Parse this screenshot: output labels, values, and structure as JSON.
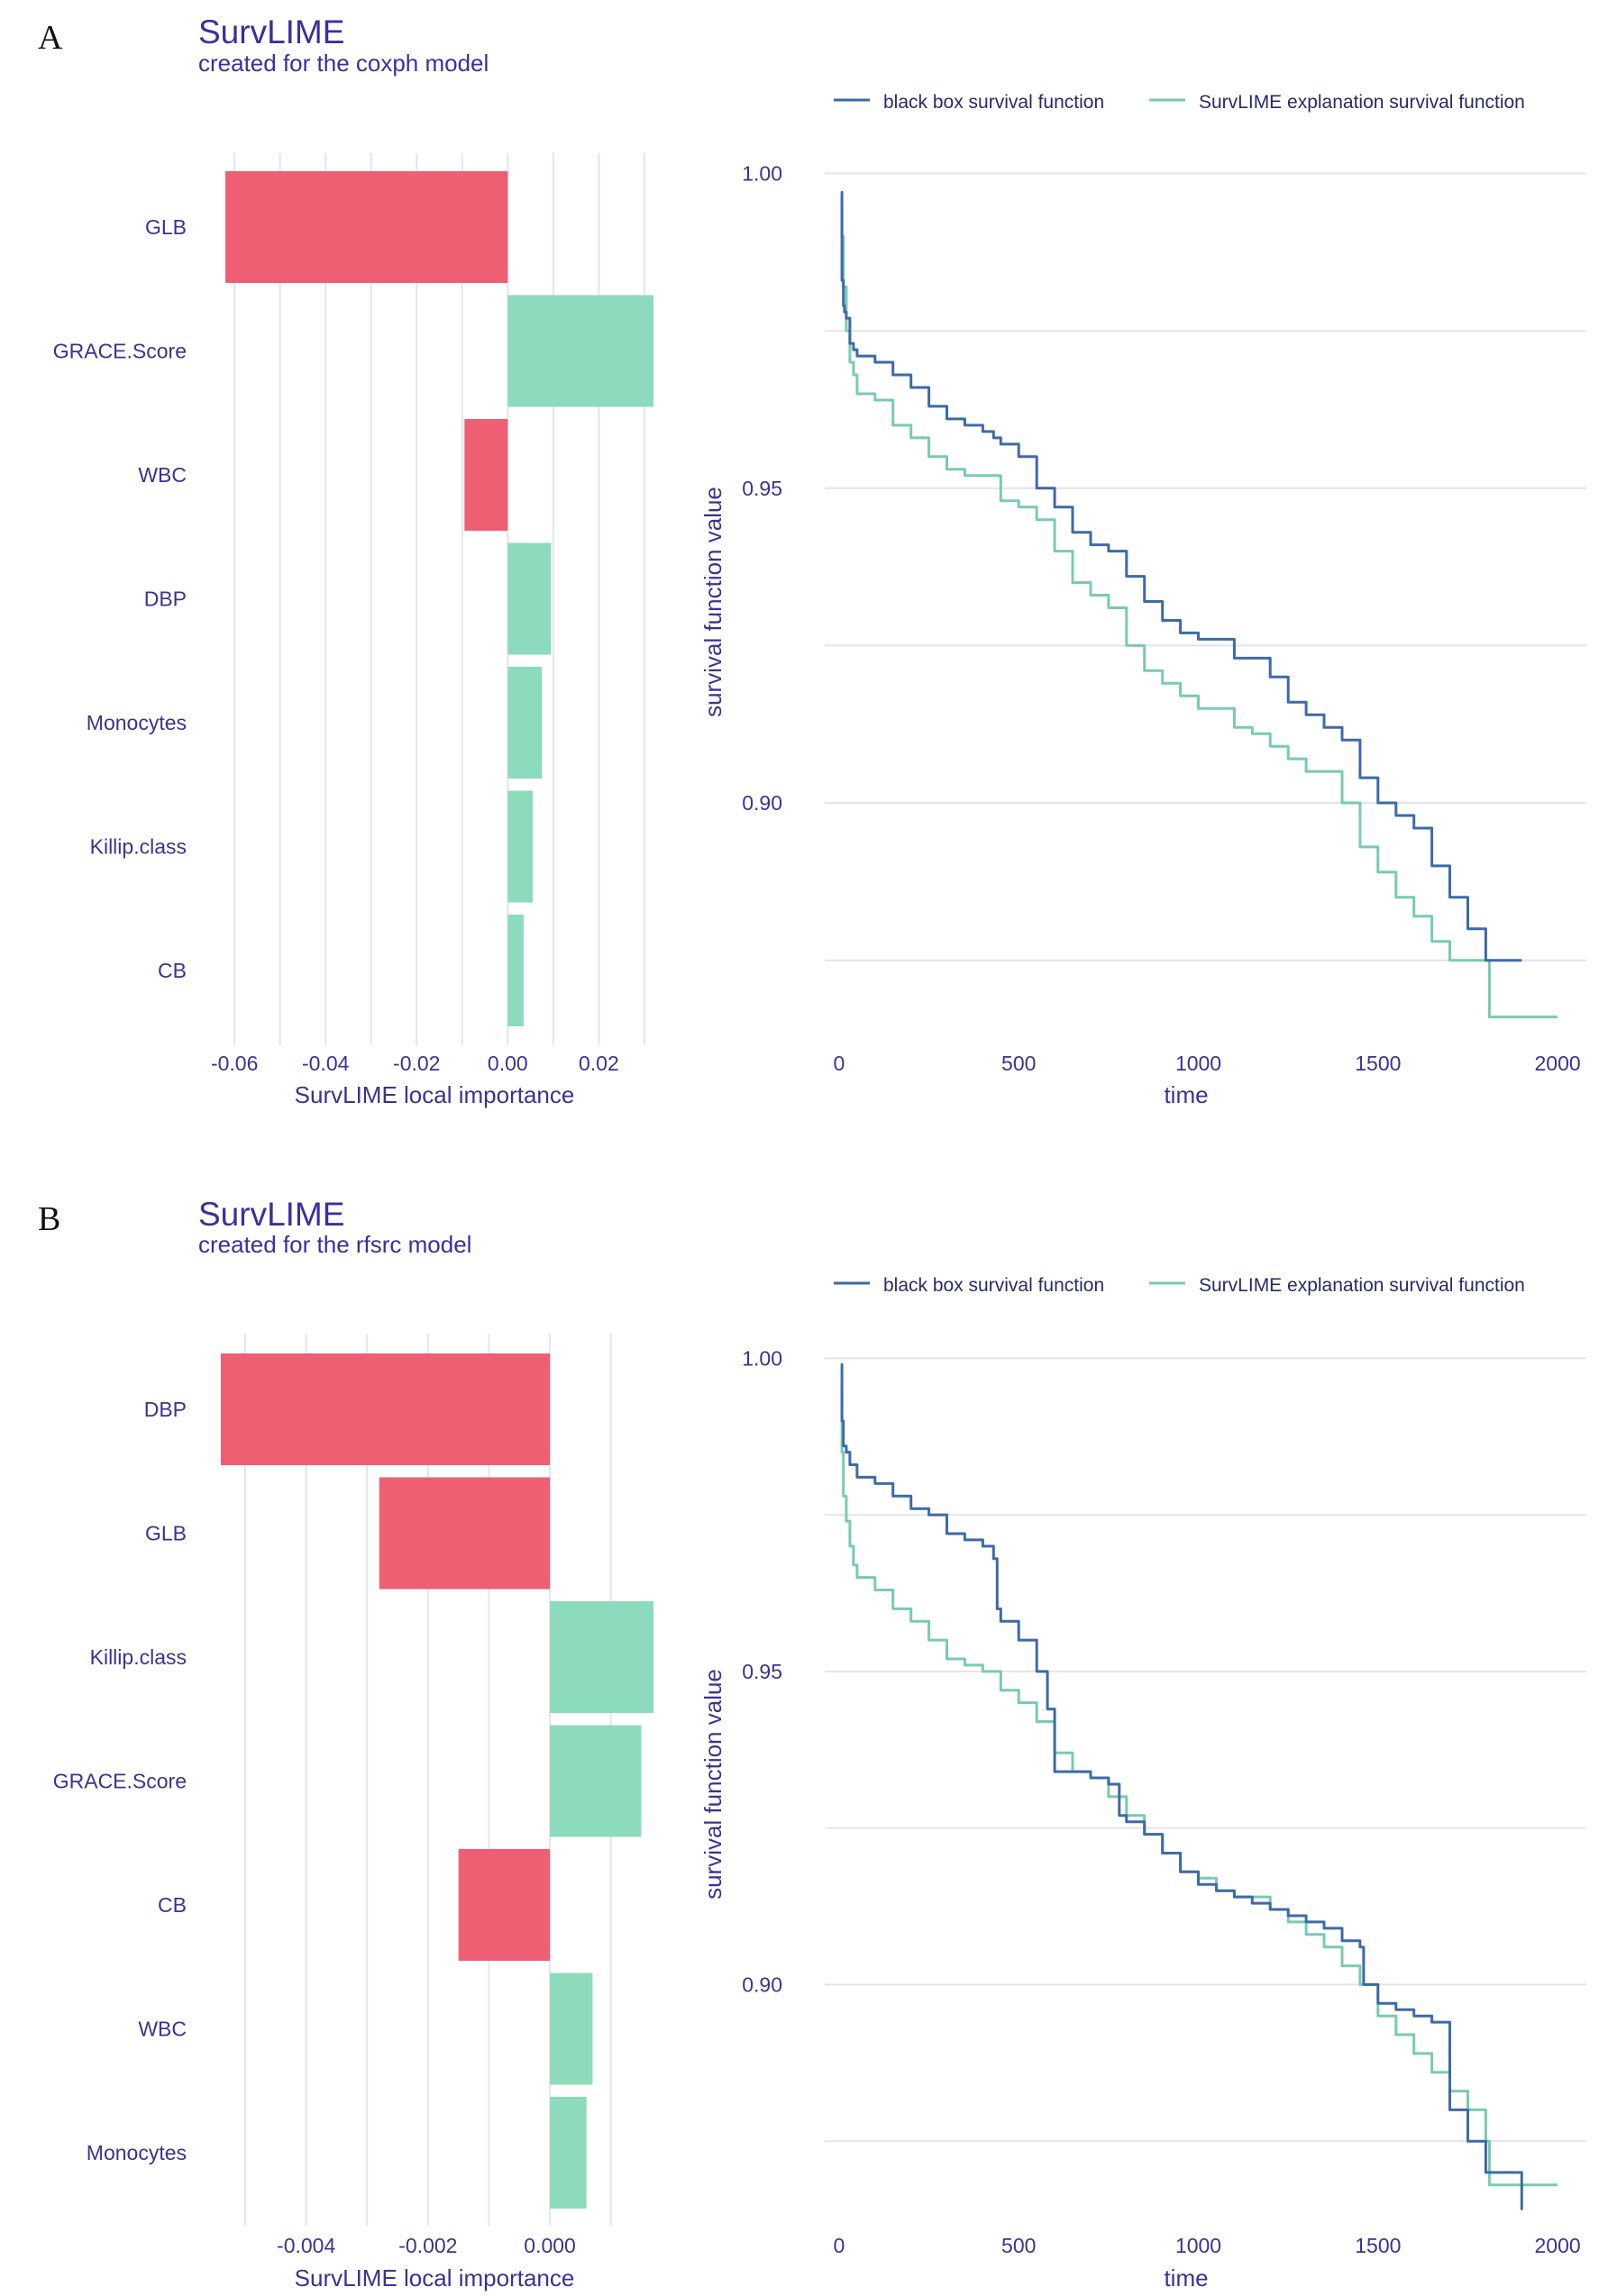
{
  "colors": {
    "negative": "#ef5f73",
    "positive": "#8cdbbc",
    "black_box_line": "#3e6aa8",
    "explanation_line": "#79cbb0",
    "text": "#3b3390",
    "title": "#3b2fa0"
  },
  "legend": {
    "black_box": "black box survival function",
    "explanation": "SurvLIME explanation survival function"
  },
  "chart_data": [
    {
      "panel": "A",
      "title": "SurvLIME",
      "subtitle": "created for the coxph model",
      "importance": {
        "type": "bar",
        "orientation": "horizontal",
        "xlabel": "SurvLIME local importance",
        "xlim": [
          -0.063,
          0.032
        ],
        "xticks": [
          -0.06,
          -0.04,
          -0.02,
          0.0,
          0.02
        ],
        "xtick_labels": [
          "-0.06",
          "-0.04",
          "-0.02",
          "0.00",
          "0.02"
        ],
        "categories": [
          "GLB",
          "GRACE.Score",
          "WBC",
          "DBP",
          "Monocytes",
          "Killip.class",
          "CB"
        ],
        "values": [
          -0.062,
          0.032,
          -0.0095,
          0.0095,
          0.0075,
          0.0055,
          0.0035
        ]
      },
      "survival": {
        "type": "line",
        "xlabel": "time",
        "ylabel": "survival function value",
        "xlim": [
          -40,
          2080
        ],
        "ylim": [
          0.8615,
          1.0025
        ],
        "xticks": [
          0,
          500,
          1000,
          1500,
          2000
        ],
        "xtick_labels": [
          "0",
          "500",
          "1000",
          "1500",
          "2000"
        ],
        "yticks": [
          0.9,
          0.95,
          1.0
        ],
        "ytick_labels": [
          "0.90",
          "0.95",
          "1.00"
        ],
        "y_minor": [
          0.875,
          0.925,
          0.975
        ],
        "series": [
          {
            "name": "black box survival function",
            "x": [
              5,
              8,
              8,
              12,
              15,
              20,
              30,
              40,
              50,
              100,
              150,
              200,
              250,
              300,
              350,
              400,
              430,
              450,
              500,
              550,
              600,
              650,
              700,
              750,
              800,
              850,
              900,
              950,
              1000,
              1100,
              1200,
              1250,
              1300,
              1350,
              1400,
              1450,
              1500,
              1550,
              1600,
              1650,
              1700,
              1750,
              1800,
              1900
            ],
            "y": [
              0.997,
              0.988,
              0.983,
              0.979,
              0.978,
              0.977,
              0.973,
              0.972,
              0.971,
              0.97,
              0.968,
              0.966,
              0.963,
              0.961,
              0.96,
              0.959,
              0.958,
              0.957,
              0.955,
              0.95,
              0.947,
              0.943,
              0.941,
              0.94,
              0.936,
              0.932,
              0.929,
              0.927,
              0.926,
              0.923,
              0.92,
              0.916,
              0.914,
              0.912,
              0.91,
              0.904,
              0.9,
              0.898,
              0.896,
              0.89,
              0.885,
              0.88,
              0.875,
              0.875
            ]
          },
          {
            "name": "SurvLIME explanation survival function",
            "x": [
              5,
              8,
              12,
              20,
              30,
              40,
              50,
              100,
              150,
              200,
              250,
              300,
              350,
              400,
              450,
              500,
              550,
              600,
              650,
              700,
              750,
              800,
              850,
              900,
              950,
              1000,
              1100,
              1150,
              1200,
              1250,
              1300,
              1400,
              1450,
              1500,
              1550,
              1600,
              1650,
              1700,
              1750,
              1800,
              1810,
              2000
            ],
            "y": [
              0.996,
              0.99,
              0.982,
              0.975,
              0.97,
              0.968,
              0.965,
              0.964,
              0.96,
              0.958,
              0.955,
              0.953,
              0.952,
              0.952,
              0.948,
              0.947,
              0.945,
              0.94,
              0.935,
              0.933,
              0.931,
              0.925,
              0.921,
              0.919,
              0.917,
              0.915,
              0.912,
              0.911,
              0.909,
              0.907,
              0.905,
              0.9,
              0.893,
              0.889,
              0.885,
              0.882,
              0.878,
              0.875,
              0.875,
              0.875,
              0.866,
              0.866
            ]
          }
        ]
      }
    },
    {
      "panel": "B",
      "title": "SurvLIME",
      "subtitle": "created for the rfsrc model",
      "importance": {
        "type": "bar",
        "orientation": "horizontal",
        "xlabel": "SurvLIME local importance",
        "xlim": [
          -0.0054,
          0.0017
        ],
        "xticks": [
          -0.004,
          -0.002,
          0.0
        ],
        "xtick_labels": [
          "-0.004",
          "-0.002",
          "0.000"
        ],
        "minor_x": [
          -0.005,
          -0.003,
          -0.001,
          0.001
        ],
        "categories": [
          "DBP",
          "GLB",
          "Killip.class",
          "GRACE.Score",
          "CB",
          "WBC",
          "Monocytes"
        ],
        "values": [
          -0.0054,
          -0.0028,
          0.0017,
          0.0015,
          -0.0015,
          0.0007,
          0.0006
        ]
      },
      "survival": {
        "type": "line",
        "xlabel": "time",
        "ylabel": "survival function value",
        "xlim": [
          -40,
          2080
        ],
        "ylim": [
          0.8615,
          1.0025
        ],
        "xticks": [
          0,
          500,
          1000,
          1500,
          2000
        ],
        "xtick_labels": [
          "0",
          "500",
          "1000",
          "1500",
          "2000"
        ],
        "yticks": [
          0.9,
          0.95,
          1.0
        ],
        "ytick_labels": [
          "0.90",
          "0.95",
          "1.00"
        ],
        "y_minor": [
          0.875,
          0.925,
          0.975
        ],
        "series": [
          {
            "name": "black box survival function",
            "x": [
              5,
              8,
              12,
              20,
              30,
              50,
              100,
              150,
              200,
              250,
              300,
              350,
              400,
              430,
              440,
              450,
              500,
              550,
              580,
              600,
              700,
              750,
              780,
              800,
              850,
              900,
              950,
              1000,
              1050,
              1100,
              1150,
              1200,
              1250,
              1300,
              1350,
              1400,
              1450,
              1460,
              1500,
              1550,
              1600,
              1650,
              1700,
              1750,
              1800,
              1900
            ],
            "y": [
              0.999,
              0.99,
              0.986,
              0.985,
              0.983,
              0.981,
              0.98,
              0.978,
              0.976,
              0.975,
              0.972,
              0.971,
              0.97,
              0.968,
              0.96,
              0.958,
              0.955,
              0.95,
              0.944,
              0.934,
              0.933,
              0.932,
              0.927,
              0.926,
              0.924,
              0.921,
              0.918,
              0.916,
              0.915,
              0.914,
              0.913,
              0.912,
              0.911,
              0.91,
              0.909,
              0.907,
              0.906,
              0.9,
              0.897,
              0.896,
              0.895,
              0.894,
              0.88,
              0.875,
              0.87,
              0.864
            ]
          },
          {
            "name": "SurvLIME explanation survival function",
            "x": [
              5,
              8,
              12,
              20,
              30,
              40,
              50,
              100,
              150,
              200,
              250,
              300,
              350,
              400,
              450,
              500,
              550,
              600,
              650,
              700,
              750,
              800,
              850,
              900,
              950,
              1000,
              1050,
              1100,
              1200,
              1250,
              1300,
              1350,
              1400,
              1450,
              1500,
              1550,
              1600,
              1650,
              1700,
              1750,
              1800,
              1810,
              2000
            ],
            "y": [
              0.996,
              0.985,
              0.978,
              0.974,
              0.97,
              0.967,
              0.965,
              0.963,
              0.96,
              0.958,
              0.955,
              0.952,
              0.951,
              0.95,
              0.947,
              0.945,
              0.942,
              0.937,
              0.934,
              0.933,
              0.93,
              0.927,
              0.924,
              0.921,
              0.918,
              0.917,
              0.915,
              0.914,
              0.912,
              0.91,
              0.908,
              0.906,
              0.903,
              0.9,
              0.895,
              0.892,
              0.889,
              0.886,
              0.883,
              0.88,
              0.875,
              0.868,
              0.868
            ]
          }
        ]
      }
    }
  ]
}
